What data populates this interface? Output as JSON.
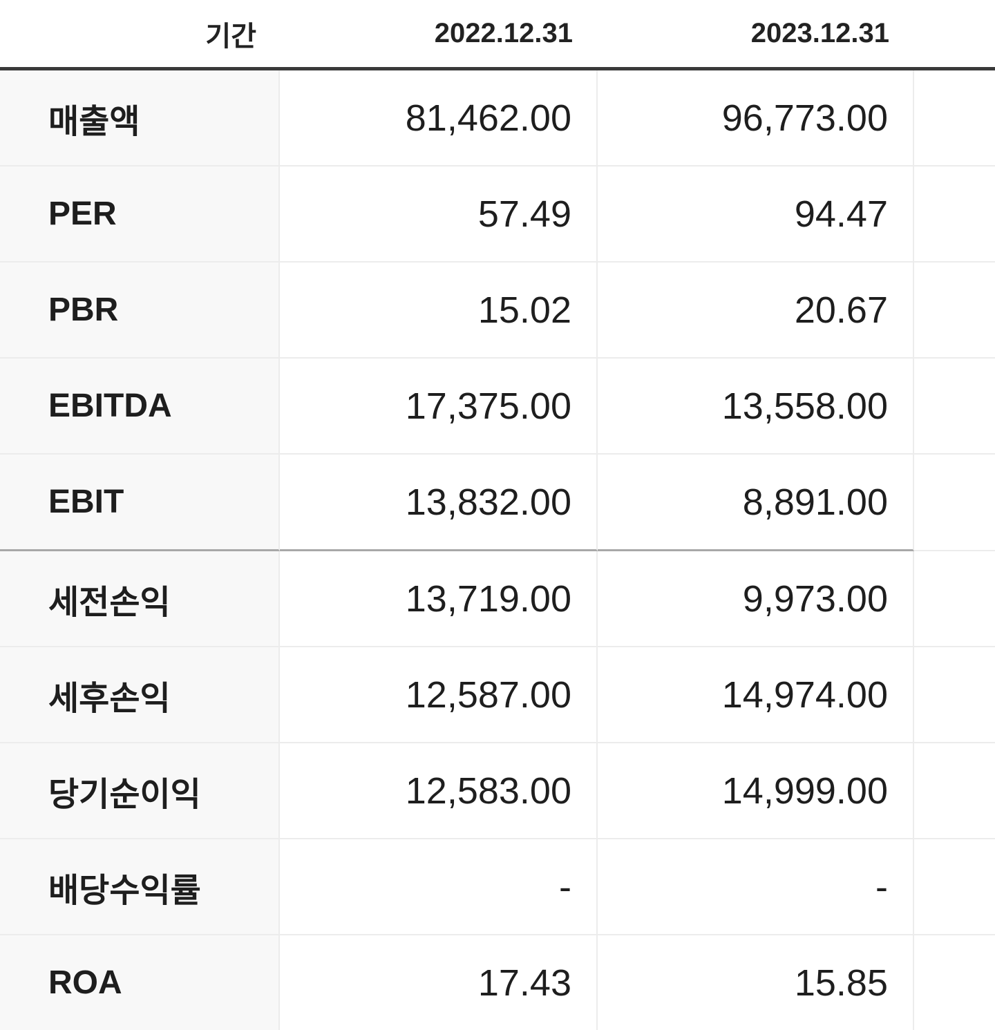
{
  "table": {
    "header": {
      "label": "기간",
      "periods": [
        "2022.12.31",
        "2023.12.31"
      ]
    },
    "rows": [
      {
        "label": "매출액",
        "values": [
          "81,462.00",
          "96,773.00"
        ]
      },
      {
        "label": "PER",
        "values": [
          "57.49",
          "94.47"
        ]
      },
      {
        "label": "PBR",
        "values": [
          "15.02",
          "20.67"
        ]
      },
      {
        "label": "EBITDA",
        "values": [
          "17,375.00",
          "13,558.00"
        ]
      },
      {
        "label": "EBIT",
        "values": [
          "13,832.00",
          "8,891.00"
        ]
      },
      {
        "label": "세전손익",
        "values": [
          "13,719.00",
          "9,973.00"
        ]
      },
      {
        "label": "세후손익",
        "values": [
          "12,587.00",
          "14,974.00"
        ]
      },
      {
        "label": "당기순이익",
        "values": [
          "12,583.00",
          "14,999.00"
        ]
      },
      {
        "label": "배당수익률",
        "values": [
          "-",
          "-"
        ]
      },
      {
        "label": "ROA",
        "values": [
          "17.43",
          "15.85"
        ]
      }
    ]
  }
}
